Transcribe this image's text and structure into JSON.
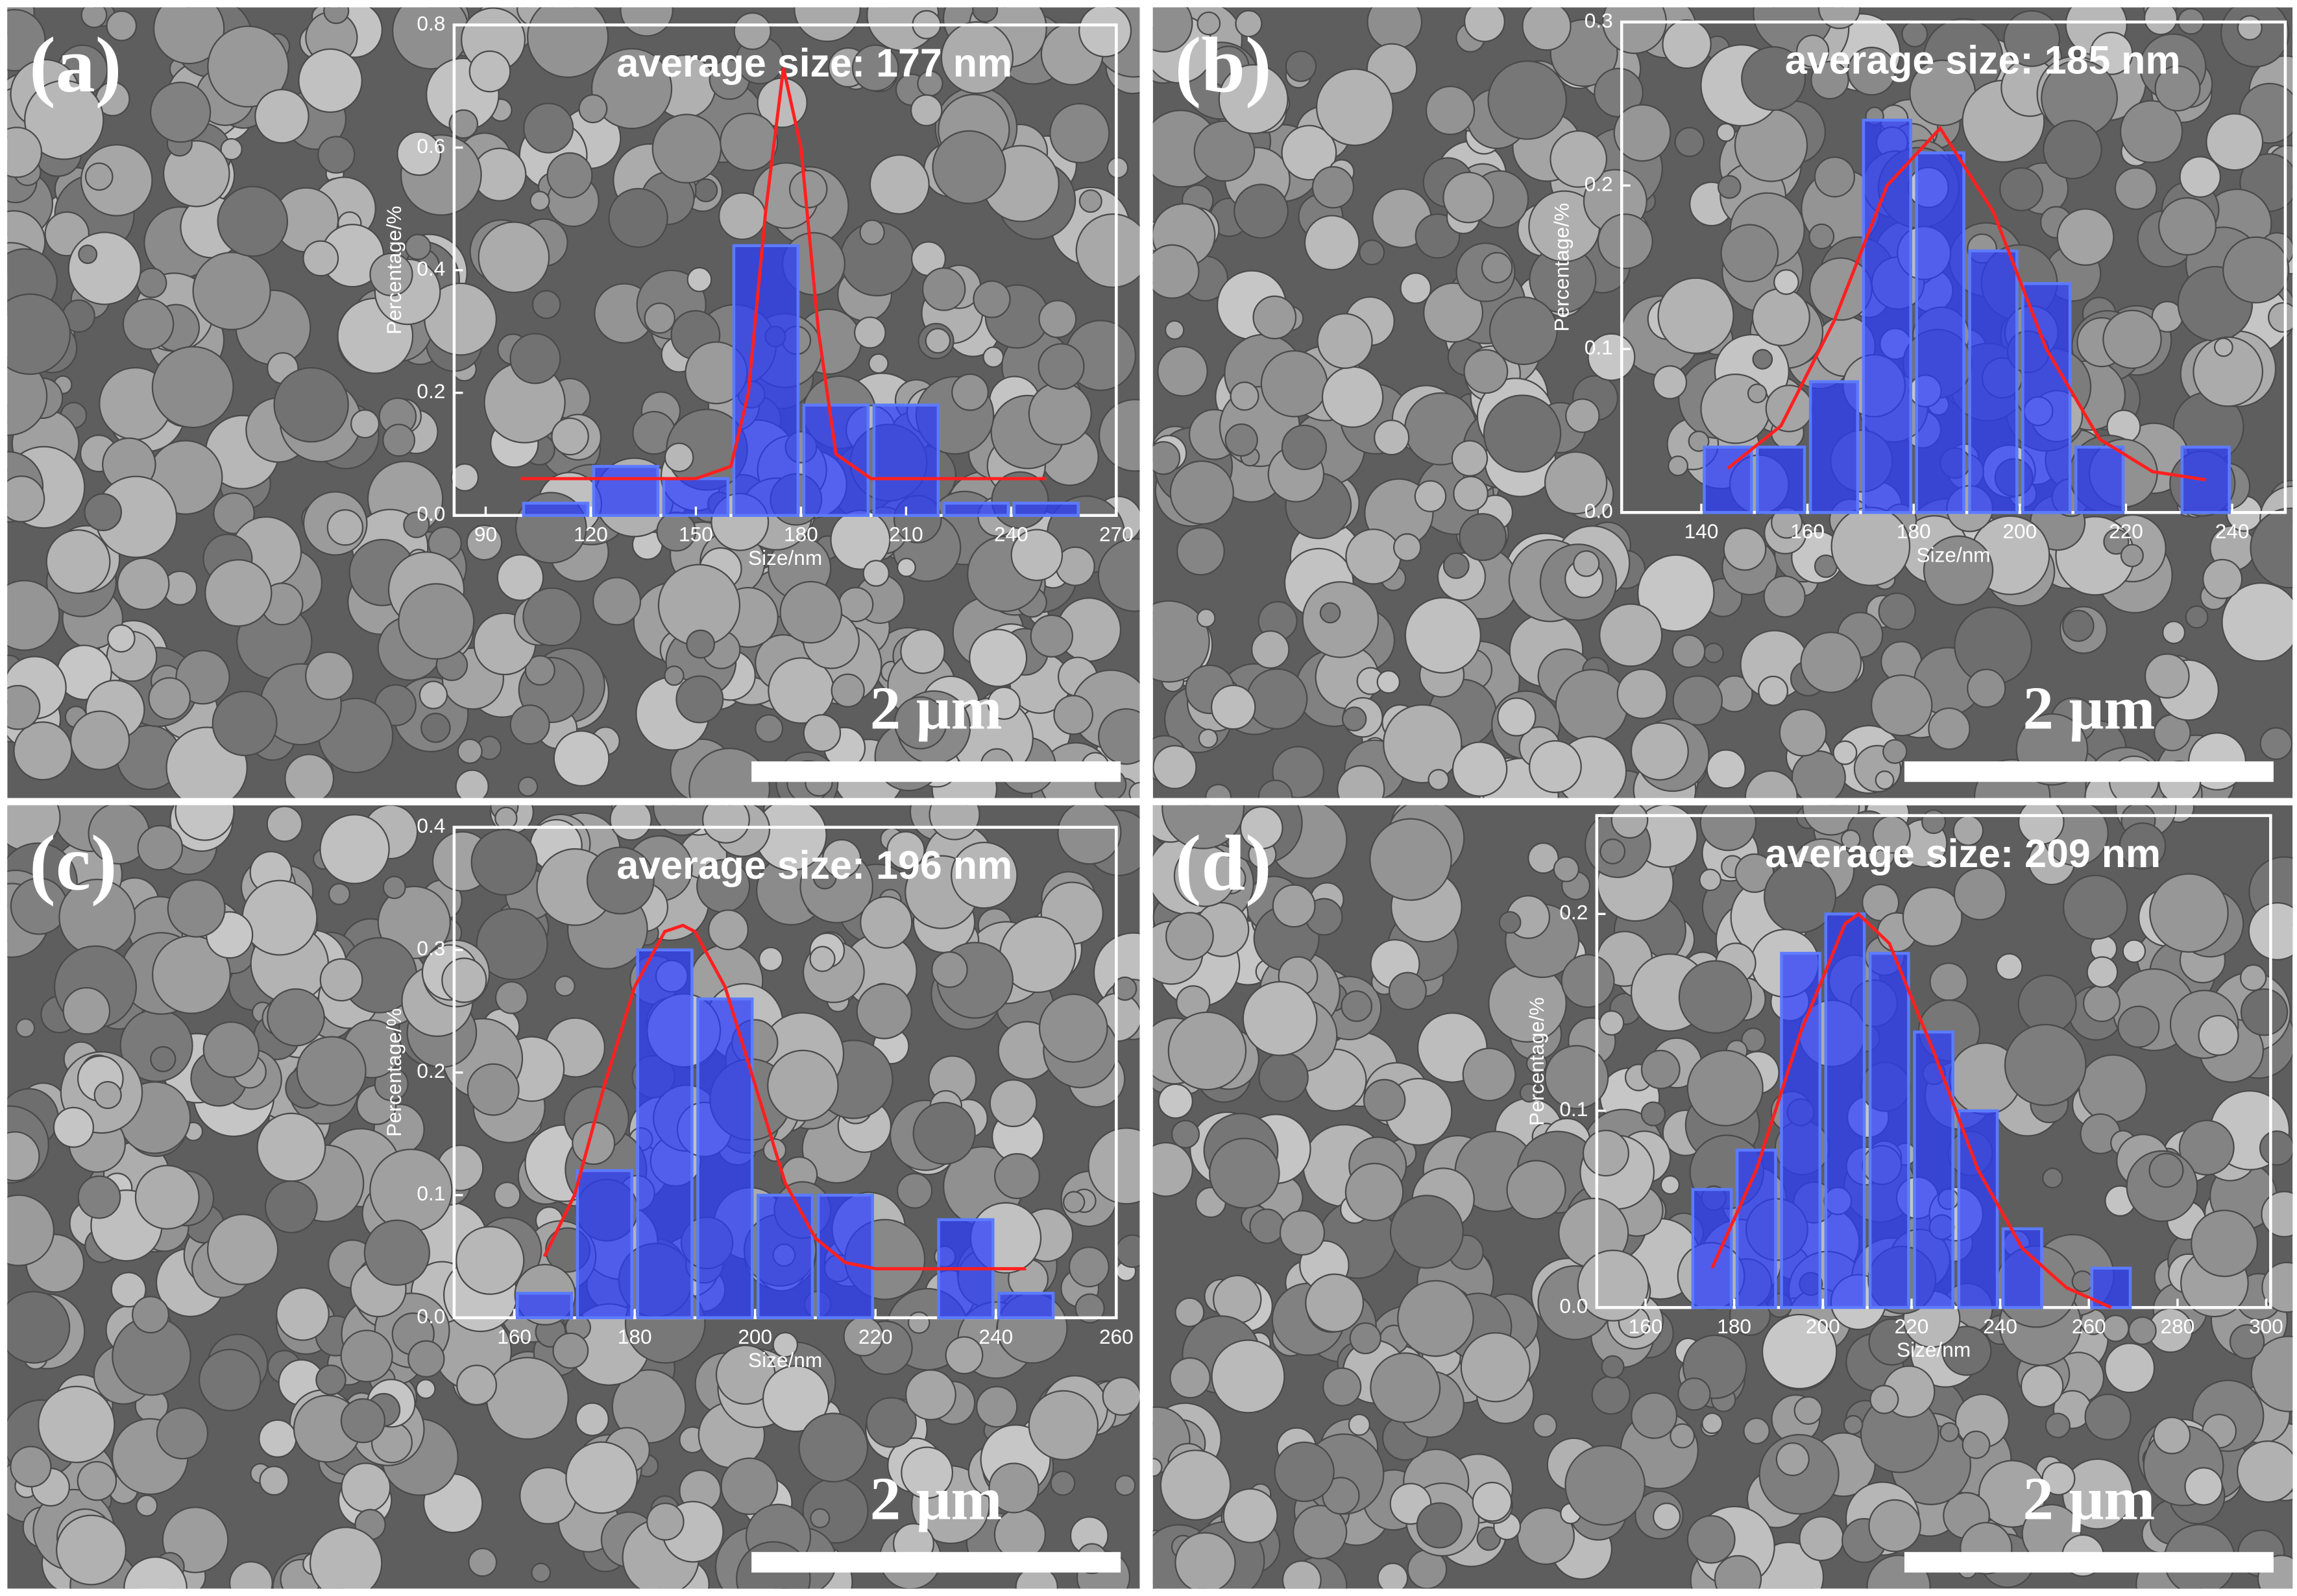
{
  "chart_data": [
    {
      "type": "histogram",
      "panel_label": "(a)",
      "title": "average size: 177 nm",
      "xlabel": "Size/nm",
      "ylabel": "Percentage/%",
      "scale_bar": "2 μm",
      "bins": [
        100,
        120,
        140,
        160,
        180,
        200,
        220,
        240,
        260
      ],
      "values": [
        0.02,
        0.08,
        0.06,
        0.44,
        0.18,
        0.18,
        0.02,
        0.02
      ],
      "color": "#2a3cff",
      "fit": {
        "x": [
          100,
          150,
          160,
          165,
          170,
          175,
          180,
          185,
          190,
          200,
          250
        ],
        "values": [
          0.06,
          0.06,
          0.08,
          0.2,
          0.5,
          0.73,
          0.6,
          0.3,
          0.1,
          0.06,
          0.06
        ],
        "color": "#ff2020"
      },
      "xlim": [
        81,
        270
      ],
      "ylim": [
        0,
        0.8
      ],
      "xticks": [
        90,
        120,
        150,
        180,
        210,
        240,
        270
      ],
      "yticks": [
        {
          "value": 0,
          "label": "0.0"
        },
        0.2,
        0.4,
        0.6,
        0.8
      ]
    },
    {
      "type": "histogram",
      "panel_label": "(b)",
      "title": "average size: 185 nm",
      "xlabel": "Size/nm",
      "ylabel": "Percentage/%",
      "scale_bar": "2 μm",
      "bins": [
        140,
        150,
        160,
        170,
        180,
        190,
        200,
        210,
        220,
        230,
        240
      ],
      "values": [
        0.04,
        0.04,
        0.08,
        0.24,
        0.22,
        0.16,
        0.14,
        0.04,
        0,
        0.04
      ],
      "color": "#2a3cff",
      "fit": {
        "x": [
          145,
          155,
          165,
          175,
          185,
          195,
          205,
          215,
          225,
          235
        ],
        "values": [
          0.027,
          0.053,
          0.117,
          0.2,
          0.235,
          0.184,
          0.1,
          0.045,
          0.025,
          0.02
        ],
        "color": "#ff2020"
      },
      "xlim": [
        125,
        250
      ],
      "ylim": [
        0,
        0.3
      ],
      "xticks": [
        140,
        160,
        180,
        200,
        220,
        240
      ],
      "yticks": [
        {
          "value": 0,
          "label": "0.0"
        },
        0.1,
        0.2,
        0.3
      ]
    },
    {
      "type": "histogram",
      "panel_label": "(c)",
      "title": "average size: 196 nm",
      "xlabel": "Size/nm",
      "ylabel": "Percentage/%",
      "scale_bar": "2 μm",
      "bins": [
        160,
        170,
        180,
        190,
        200,
        210,
        220,
        230,
        240,
        250
      ],
      "values": [
        0.02,
        0.12,
        0.3,
        0.26,
        0.1,
        0.1,
        0,
        0.08,
        0.02
      ],
      "color": "#2a3cff",
      "fit": {
        "x": [
          165,
          170,
          175,
          180,
          185,
          188,
          190,
          195,
          200,
          205,
          210,
          215,
          220,
          245
        ],
        "values": [
          0.05,
          0.1,
          0.19,
          0.27,
          0.315,
          0.32,
          0.315,
          0.27,
          0.19,
          0.11,
          0.065,
          0.045,
          0.04,
          0.04
        ],
        "color": "#ff2020"
      },
      "xlim": [
        150,
        260
      ],
      "ylim": [
        0,
        0.4
      ],
      "xticks": [
        160,
        180,
        200,
        220,
        240,
        260
      ],
      "yticks": [
        {
          "value": 0,
          "label": "0.0"
        },
        0.1,
        0.2,
        0.3,
        0.4
      ]
    },
    {
      "type": "histogram",
      "panel_label": "(d)",
      "title": "average size: 209 nm",
      "xlabel": "Size/nm",
      "ylabel": "Percentage/%",
      "scale_bar": "2 μm",
      "bins": [
        170,
        180,
        190,
        200,
        210,
        220,
        230,
        240,
        250,
        260,
        270
      ],
      "values": [
        0.06,
        0.08,
        0.18,
        0.2,
        0.18,
        0.14,
        0.1,
        0.04,
        0,
        0.02
      ],
      "color": "#2a3cff",
      "fit": {
        "x": [
          175,
          185,
          195,
          205,
          208,
          215,
          225,
          235,
          245,
          255,
          265
        ],
        "values": [
          0.02,
          0.07,
          0.14,
          0.195,
          0.2,
          0.185,
          0.13,
          0.07,
          0.03,
          0.01,
          0
        ],
        "color": "#ff2020"
      },
      "xlim": [
        149,
        301
      ],
      "ylim": [
        0,
        0.25
      ],
      "xticks": [
        160,
        180,
        200,
        220,
        240,
        260,
        280,
        300
      ],
      "yticks": [
        {
          "value": 0,
          "label": "0.0"
        },
        0.1,
        0.2
      ]
    }
  ]
}
